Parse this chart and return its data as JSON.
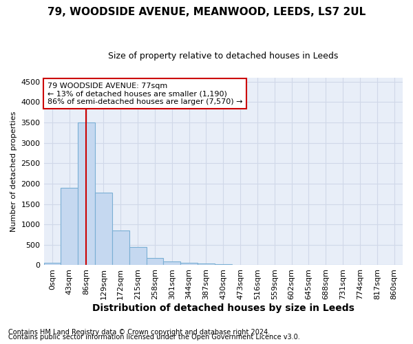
{
  "title1": "79, WOODSIDE AVENUE, MEANWOOD, LEEDS, LS7 2UL",
  "title2": "Size of property relative to detached houses in Leeds",
  "xlabel": "Distribution of detached houses by size in Leeds",
  "ylabel": "Number of detached properties",
  "bar_labels": [
    "0sqm",
    "43sqm",
    "86sqm",
    "129sqm",
    "172sqm",
    "215sqm",
    "258sqm",
    "301sqm",
    "344sqm",
    "387sqm",
    "430sqm",
    "473sqm",
    "516sqm",
    "559sqm",
    "602sqm",
    "645sqm",
    "688sqm",
    "731sqm",
    "774sqm",
    "817sqm",
    "860sqm"
  ],
  "bar_values": [
    50,
    1900,
    3500,
    1780,
    850,
    450,
    175,
    95,
    60,
    40,
    30,
    0,
    0,
    0,
    0,
    0,
    0,
    0,
    0,
    0,
    0
  ],
  "bar_color": "#c5d8f0",
  "bar_edge_color": "#7aafd4",
  "ylim": [
    0,
    4600
  ],
  "yticks": [
    0,
    500,
    1000,
    1500,
    2000,
    2500,
    3000,
    3500,
    4000,
    4500
  ],
  "vline_x": 1.97,
  "vline_color": "#cc0000",
  "annotation_text": "79 WOODSIDE AVENUE: 77sqm\n← 13% of detached houses are smaller (1,190)\n86% of semi-detached houses are larger (7,570) →",
  "annotation_box_color": "#ffffff",
  "annotation_border_color": "#cc0000",
  "grid_color": "#d0d8e8",
  "bg_color": "#e8eef8",
  "footnote1": "Contains HM Land Registry data © Crown copyright and database right 2024.",
  "footnote2": "Contains public sector information licensed under the Open Government Licence v3.0.",
  "title1_fontsize": 11,
  "title2_fontsize": 9,
  "xlabel_fontsize": 10,
  "ylabel_fontsize": 8,
  "tick_fontsize": 8,
  "annot_fontsize": 8,
  "footnote_fontsize": 7
}
